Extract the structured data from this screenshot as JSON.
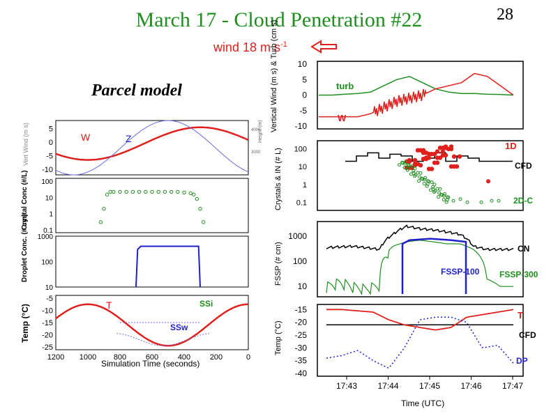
{
  "slide": {
    "title": "March 17 - Cloud Penetration #22",
    "number": "28",
    "wind_label": "wind 18 m s",
    "wind_exp": "-1",
    "parcel_title": "Parcel model"
  },
  "colors": {
    "red": "#e0201c",
    "green": "#1f8f1f",
    "blue": "#1f1fcc",
    "black": "#000000",
    "thinblue": "#6a6ae0"
  },
  "chart_data": [
    {
      "id": "parcel-wind",
      "type": "line",
      "ylabel": "Vert Wind (m s)",
      "xlim": [
        1200,
        0
      ],
      "ylim": [
        -12,
        8
      ],
      "yticks": [
        "5",
        "0",
        "-5",
        "-10"
      ],
      "right_ticks": [
        "4000",
        "3000"
      ],
      "right_label": "Height (m)",
      "series": [
        {
          "name": "W",
          "x": [
            1200,
            1100,
            1000,
            900,
            850,
            800,
            700,
            600,
            500,
            400,
            300,
            200,
            100,
            0
          ],
          "values": [
            5,
            3,
            -2,
            -6,
            -7,
            -7,
            -7,
            -4,
            1,
            5,
            6,
            4,
            1,
            -2
          ]
        },
        {
          "name": "Z",
          "x": [
            1200,
            1100,
            1000,
            900,
            800,
            700,
            600,
            500,
            400,
            300,
            200,
            100,
            0
          ],
          "values": [
            -5,
            -9,
            -12,
            -10,
            -5,
            1,
            6,
            8,
            6,
            1,
            -5,
            -10,
            -12
          ]
        }
      ]
    },
    {
      "id": "parcel-crystal",
      "type": "scatter",
      "ylabel": "Crystal Conc (#/L)",
      "ylim": [
        0.1,
        100
      ],
      "yticks": [
        "100",
        "10",
        "1",
        "0.1"
      ],
      "series": [
        {
          "name": "Crystal",
          "x": [
            920,
            900,
            880,
            860,
            840,
            800,
            760,
            720,
            680,
            640,
            600,
            560,
            520,
            480,
            440,
            400,
            360,
            340,
            320,
            300,
            280
          ],
          "values": [
            0.3,
            2,
            15,
            22,
            22,
            22,
            22,
            22,
            22,
            22,
            22,
            22,
            22,
            22,
            22,
            20,
            18,
            15,
            8,
            2,
            0.3
          ]
        }
      ]
    },
    {
      "id": "parcel-droplet",
      "type": "line",
      "ylabel": "Droplet Conc. (# cm)",
      "ylim": [
        10,
        1000
      ],
      "yticks": [
        "1000",
        "100",
        "10"
      ],
      "series": [
        {
          "name": "Droplet",
          "x": [
            700,
            690,
            670,
            320,
            310,
            300
          ],
          "values": [
            10,
            300,
            400,
            400,
            400,
            10
          ]
        }
      ]
    },
    {
      "id": "parcel-temp",
      "type": "line",
      "ylabel": "Temp (°C)",
      "xlabel": "Simulation Time (seconds)",
      "ylim": [
        -25,
        -5
      ],
      "yticks": [
        "-5",
        "-10",
        "-15",
        "-20",
        "-25"
      ],
      "xticks": [
        "1200",
        "1000",
        "800",
        "600",
        "400",
        "200",
        "0"
      ],
      "series": [
        {
          "name": "T",
          "x": [
            1200,
            1100,
            1000,
            900,
            800,
            700,
            600,
            500,
            400,
            300,
            200,
            100,
            0
          ],
          "values": [
            -17,
            -11,
            -8,
            -10,
            -16,
            -21,
            -24,
            -25,
            -23,
            -19,
            -13,
            -9,
            -7
          ]
        },
        {
          "name": "SSi",
          "x": [
            800,
            700,
            600,
            500,
            400,
            300
          ],
          "values": [
            -15,
            -15,
            -15,
            -15,
            -15,
            -15
          ]
        },
        {
          "name": "SSw",
          "x": [
            800,
            700,
            600,
            500,
            400,
            300,
            250
          ],
          "values": [
            -25,
            -21,
            -19,
            -20,
            -22,
            -23,
            -25
          ]
        }
      ]
    },
    {
      "id": "obs-wind",
      "type": "line",
      "ylabel": "Vertical Wind (m s) & Turb (cm s)",
      "ylim": [
        -10,
        10
      ],
      "yticks": [
        "10",
        "5",
        "0",
        "-5",
        "-10"
      ],
      "series": [
        {
          "name": "turb",
          "values": [
            0,
            0,
            0.3,
            0.5,
            1,
            3,
            5,
            6,
            4,
            2,
            1,
            0.5,
            0.5,
            0.3,
            0.2,
            0
          ]
        },
        {
          "name": "W",
          "values": [
            -7,
            -7,
            -7,
            -7,
            -6,
            -4,
            -2,
            -1,
            0,
            2,
            3,
            4,
            7,
            6,
            3,
            0
          ]
        }
      ]
    },
    {
      "id": "obs-crystals",
      "type": "line",
      "ylabel": "Crystals & IN (# L)",
      "ylim": [
        0.05,
        200
      ],
      "yticks": [
        "100",
        "10",
        "1",
        "0.1"
      ],
      "series": [
        {
          "name": "CFD",
          "values": [
            20,
            40,
            60,
            30,
            50,
            40,
            20,
            30,
            60,
            20,
            40,
            30,
            20,
            20,
            20
          ]
        },
        {
          "name": "1D",
          "values": [
            30,
            50,
            20,
            80,
            100,
            30,
            50,
            60,
            20,
            30
          ]
        },
        {
          "name": "2D-C",
          "values": [
            10,
            5,
            2,
            1,
            0.5,
            0.2,
            0.1,
            0.2,
            0.1
          ]
        }
      ]
    },
    {
      "id": "obs-fssp",
      "type": "line",
      "ylabel": "FSSP (# cm)",
      "ylim": [
        5,
        3000
      ],
      "yticks": [
        "1000",
        "100",
        "10"
      ],
      "series": [
        {
          "name": "CN",
          "values": [
            350,
            380,
            400,
            350,
            300,
            1200,
            2500,
            2000,
            1800,
            1500,
            1200,
            400,
            300,
            300,
            300
          ]
        },
        {
          "name": "FSSP-100",
          "values": [
            5,
            5,
            5,
            5,
            5,
            500,
            700,
            800,
            700,
            600,
            5
          ]
        },
        {
          "name": "FSSP-300",
          "values": [
            10,
            15,
            10,
            8,
            12,
            400,
            600,
            700,
            600,
            500,
            500,
            300,
            20,
            10,
            10
          ]
        }
      ]
    },
    {
      "id": "obs-temp",
      "type": "line",
      "ylabel": "Temp (°C)",
      "xlabel": "Time (UTC)",
      "ylim": [
        -40,
        -15
      ],
      "yticks": [
        "-15",
        "-20",
        "-25",
        "-30",
        "-35",
        "-40"
      ],
      "xticks": [
        "17:43",
        "17:44",
        "17:45",
        "17:46",
        "17:47"
      ],
      "series": [
        {
          "name": "T",
          "values": [
            -15,
            -15,
            -15.5,
            -16,
            -19,
            -21,
            -22,
            -23,
            -22,
            -18,
            -17,
            -16,
            -15
          ]
        },
        {
          "name": "CFD",
          "values": [
            -21,
            -21,
            -21,
            -21,
            -21,
            -21,
            -21,
            -21,
            -21,
            -21,
            -21,
            -21,
            -21
          ]
        },
        {
          "name": "DP",
          "values": [
            -34,
            -33,
            -31,
            -35,
            -38,
            -30,
            -19,
            -18,
            -18,
            -20,
            -30,
            -29,
            -36
          ]
        }
      ]
    }
  ],
  "labels": {
    "W_left": "W",
    "Z": "Z",
    "T_left": "T",
    "SSi": "SSi",
    "SSw": "SSw",
    "turb": "turb",
    "W_right": "W",
    "oneD": "1D",
    "CFD1": "CFD",
    "twoDC": "2D-C",
    "CN": "CN",
    "FSSP100": "FSSP-100",
    "FSSP300": "FSSP-300",
    "T_right": "T",
    "CFD2": "CFD",
    "DP": "DP"
  }
}
